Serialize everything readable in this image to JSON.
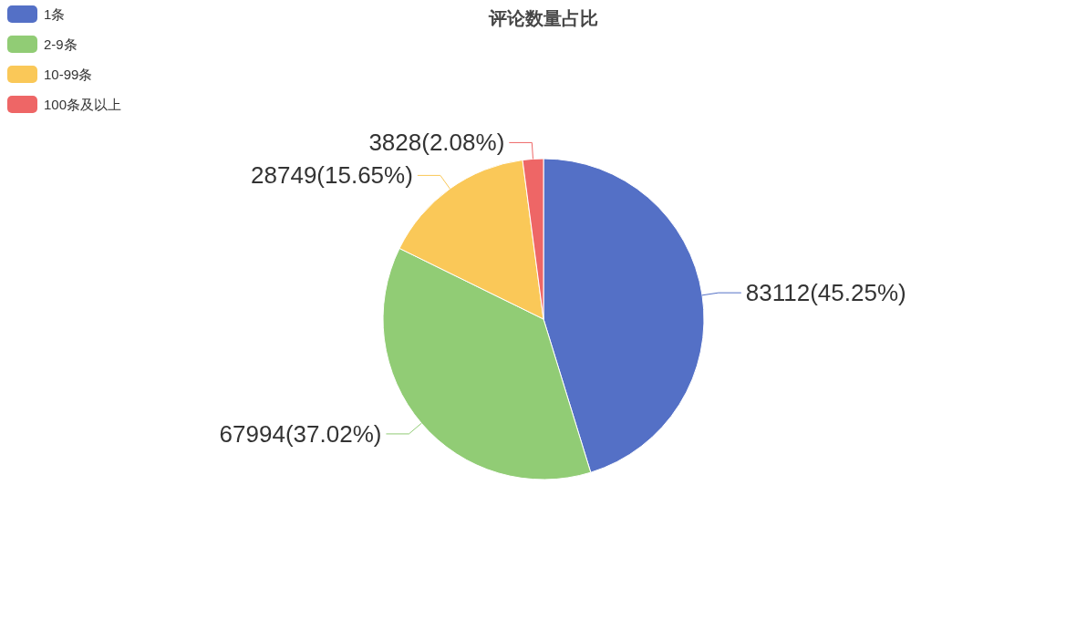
{
  "chart_data": {
    "type": "pie",
    "title": "评论数量占比",
    "categories": [
      "1条",
      "2-9条",
      "10-99条",
      "100条及以上"
    ],
    "values": [
      83112,
      67994,
      28749,
      3828
    ],
    "colors": [
      "#5470c6",
      "#91cc75",
      "#fac858",
      "#ee6666"
    ],
    "value_labels": [
      "83112(45.25%)",
      "67994(37.02%)",
      "28749(15.65%)",
      "3828(2.08%)"
    ],
    "legend": "top left"
  }
}
